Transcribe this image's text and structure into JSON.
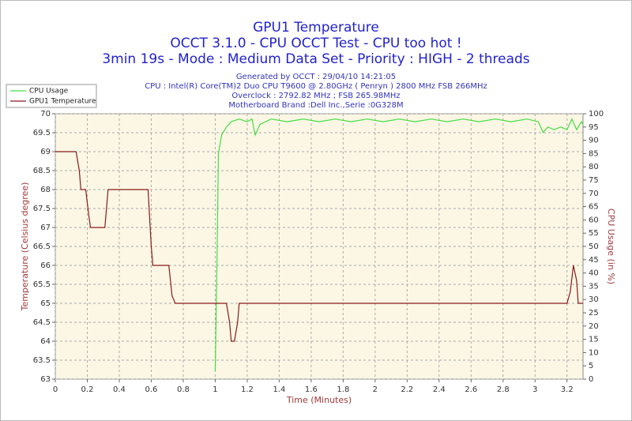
{
  "chart_data": {
    "type": "line",
    "title": "GPU1 Temperature",
    "subtitle": [
      "OCCT 3.1.0 - CPU OCCT Test - CPU too hot !",
      "3min 19s - Mode : Medium Data Set - Priority : HIGH - 2 threads"
    ],
    "info": [
      "Generated by OCCT : 29/04/10 14:21:05",
      "CPU : Intel(R) Core(TM)2 Duo CPU T9600 @ 2.80GHz ( Penryn ) 2800 MHz FSB 266MHz",
      "Overclock : 2792.82 MHz ; FSB 265.98MHz",
      "Motherboard Brand :Dell Inc.,Serie :0G328M"
    ],
    "xlabel": "Time (Minutes)",
    "ylabel": "Temperature (Celsius degree)",
    "y2label": "CPU Usage (in %)",
    "xlim": [
      0,
      3.3
    ],
    "xticks": [
      0,
      0.2,
      0.4,
      0.6,
      0.8,
      1,
      1.2,
      1.4,
      1.6,
      1.8,
      2,
      2.2,
      2.4,
      2.6,
      2.8,
      3,
      3.2
    ],
    "ylim": [
      63,
      70
    ],
    "yticks": [
      63,
      63.5,
      64,
      64.5,
      65,
      65.5,
      66,
      66.5,
      67,
      67.5,
      68,
      68.5,
      69,
      69.5,
      70
    ],
    "y2lim": [
      0,
      100
    ],
    "y2ticks": [
      0,
      5,
      10,
      15,
      20,
      25,
      30,
      35,
      40,
      45,
      50,
      55,
      60,
      65,
      70,
      75,
      80,
      85,
      90,
      95,
      100
    ],
    "grid": true,
    "legend": "top-left",
    "series": [
      {
        "name": "CPU Usage",
        "color": "#44dd44",
        "axis": "y2",
        "x": [
          1.0,
          1.01,
          1.02,
          1.04,
          1.07,
          1.1,
          1.15,
          1.2,
          1.23,
          1.25,
          1.28,
          1.35,
          1.45,
          1.55,
          1.65,
          1.75,
          1.85,
          1.95,
          2.05,
          2.15,
          2.25,
          2.35,
          2.45,
          2.55,
          2.65,
          2.75,
          2.85,
          2.95,
          3.02,
          3.05,
          3.08,
          3.12,
          3.16,
          3.2,
          3.23,
          3.26,
          3.29,
          3.3
        ],
        "values": [
          3,
          40,
          85,
          92,
          95,
          97,
          98,
          97,
          98,
          92,
          96,
          98,
          97,
          98,
          97,
          98,
          97,
          98,
          97,
          98,
          97,
          98,
          97,
          98,
          97,
          98,
          97,
          98,
          97,
          93,
          95,
          94,
          95,
          94,
          98,
          94,
          97,
          96
        ]
      },
      {
        "name": "GPU1 Temperature",
        "color": "#8b1a1a",
        "x": [
          0,
          0.13,
          0.15,
          0.16,
          0.19,
          0.21,
          0.22,
          0.31,
          0.33,
          0.58,
          0.6,
          0.61,
          0.71,
          0.73,
          0.75,
          1.07,
          1.09,
          1.1,
          1.12,
          1.14,
          1.15,
          3.2,
          3.22,
          3.24,
          3.26,
          3.27,
          3.3
        ],
        "values": [
          69,
          69,
          68.5,
          68,
          68,
          67.3,
          67,
          67,
          68,
          68,
          66.5,
          66,
          66,
          65.2,
          65,
          65,
          64.5,
          64,
          64,
          64.5,
          65,
          65,
          65.3,
          66,
          65.6,
          65,
          65
        ]
      }
    ]
  }
}
